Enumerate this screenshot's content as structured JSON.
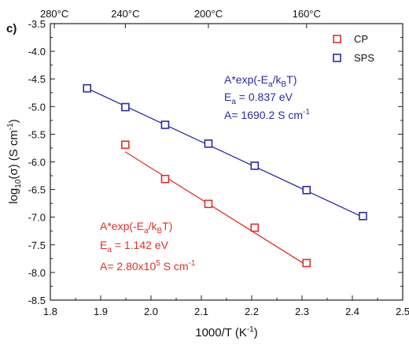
{
  "chart_data": {
    "type": "scatter",
    "panel_label": "c)",
    "xlabel": "1000/T (K",
    "xlabel_sup": "-1",
    "xlabel_end": ")",
    "ylabel_log": "log",
    "ylabel_sub": "10",
    "ylabel_mid": "(σ) (S cm",
    "ylabel_sup": "-1",
    "ylabel_end": ")",
    "xlim": [
      1.8,
      2.5
    ],
    "ylim": [
      -8.5,
      -3.5
    ],
    "xticks": [
      "1.8",
      "1.9",
      "2.0",
      "2.1",
      "2.2",
      "2.3",
      "2.4",
      "2.5"
    ],
    "yticks": [
      "-3.5",
      "-4.0",
      "-4.5",
      "-5.0",
      "-5.5",
      "-6.0",
      "-6.5",
      "-7.0",
      "-7.5",
      "-8.0",
      "-8.5"
    ],
    "top_axis": {
      "ticks": [
        {
          "label": "280°C",
          "x": 1.808
        },
        {
          "label": "240°C",
          "x": 1.949
        },
        {
          "label": "200°C",
          "x": 2.114
        },
        {
          "label": "160°C",
          "x": 2.309
        }
      ]
    },
    "legend": {
      "position": "top-right",
      "entries": [
        {
          "name": "CP",
          "color": "#e0302a"
        },
        {
          "name": "SPS",
          "color": "#2a2aa8"
        }
      ]
    },
    "series": [
      {
        "name": "CP",
        "color": "#e0302a",
        "x": [
          1.949,
          2.028,
          2.114,
          2.206,
          2.309
        ],
        "y": [
          -5.69,
          -6.31,
          -6.76,
          -7.19,
          -7.83
        ],
        "fit": {
          "x": [
            1.949,
            2.309
          ],
          "y": [
            -5.82,
            -7.87
          ]
        },
        "annotation": {
          "line1_pre": "A*exp(-E",
          "line1_sub": "a",
          "line1_mid": "/k",
          "line1_sub2": "B",
          "line1_end": "T)",
          "line2_pre": "E",
          "line2_sub": "a",
          "line2_end": " = 1.142 eV",
          "line3_pre": "A= 2.80x10",
          "line3_sup": "5",
          "line3_mid": " S cm",
          "line3_sup2": "-1"
        }
      },
      {
        "name": "SPS",
        "color": "#2a2aa8",
        "x": [
          1.873,
          1.949,
          2.028,
          2.114,
          2.206,
          2.309,
          2.421
        ],
        "y": [
          -4.67,
          -5.01,
          -5.33,
          -5.67,
          -6.07,
          -6.51,
          -6.98
        ],
        "fit": {
          "x": [
            1.873,
            2.421
          ],
          "y": [
            -4.67,
            -7.0
          ]
        },
        "annotation": {
          "line1_pre": "A*exp(-E",
          "line1_sub": "a",
          "line1_mid": "/k",
          "line1_sub2": "B",
          "line1_end": "T)",
          "line2_pre": "E",
          "line2_sub": "a",
          "line2_end": " = 0.837 eV",
          "line3_pre": "A= 1690.2 S cm",
          "line3_sup": "-1"
        }
      }
    ]
  }
}
